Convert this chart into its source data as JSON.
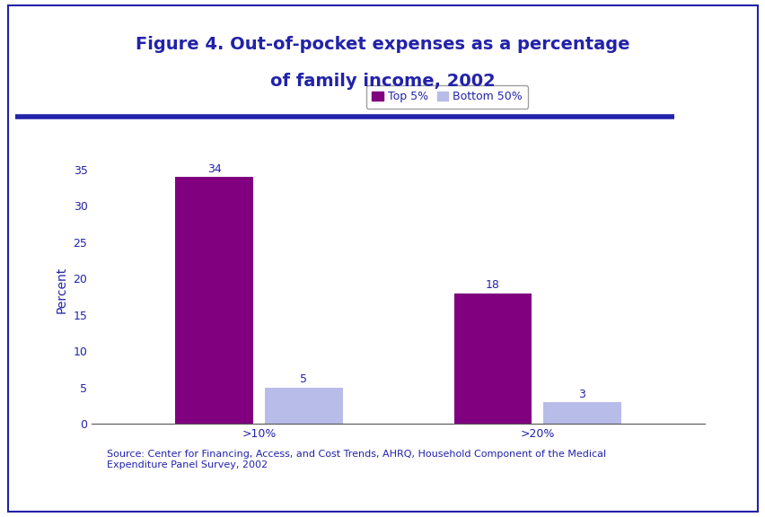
{
  "title_line1": "Figure 4. Out-of-pocket expenses as a percentage",
  "title_line2": "of family income, 2002",
  "title_color": "#2222aa",
  "title_fontsize": 14,
  "categories": [
    ">10%",
    ">20%"
  ],
  "series": [
    {
      "label": "Top 5%",
      "values": [
        34,
        18
      ],
      "color": "#800080"
    },
    {
      "label": "Bottom 50%",
      "values": [
        5,
        3
      ],
      "color": "#b8bce8"
    }
  ],
  "ylabel": "Percent",
  "ylabel_color": "#2222aa",
  "ylabel_fontsize": 10,
  "ylim": [
    0,
    37
  ],
  "yticks": [
    0,
    5,
    10,
    15,
    20,
    25,
    30,
    35
  ],
  "bar_width": 0.28,
  "value_label_fontsize": 9,
  "value_label_color": "#2222aa",
  "legend_fontsize": 9,
  "legend_edgecolor": "#888888",
  "source_text": "Source: Center for Financing, Access, and Cost Trends, AHRQ, Household Component of the Medical\nExpenditure Panel Survey, 2002",
  "source_fontsize": 8,
  "source_color": "#2222aa",
  "background_color": "#ffffff",
  "axis_color": "#555555",
  "border_color": "#2222aa",
  "tick_label_color": "#2222aa",
  "tick_label_fontsize": 9
}
